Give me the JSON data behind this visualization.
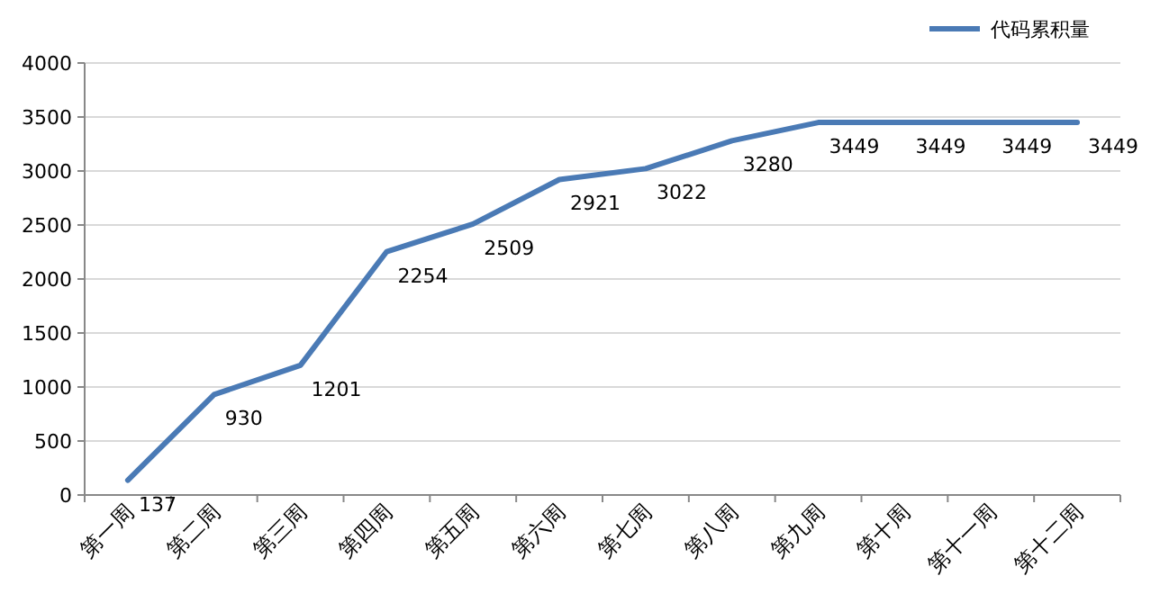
{
  "chart_data": {
    "type": "line",
    "categories": [
      "第一周",
      "第二周",
      "第三周",
      "第四周",
      "第五周",
      "第六周",
      "第七周",
      "第八周",
      "第九周",
      "第十周",
      "第十一周",
      "第十二周"
    ],
    "series": [
      {
        "name": "代码累积量",
        "color": "#4a7ab5",
        "values": [
          137,
          930,
          1201,
          2254,
          2509,
          2921,
          3022,
          3280,
          3449,
          3449,
          3449,
          3449
        ]
      }
    ],
    "ylim": [
      0,
      4000
    ],
    "yticks": [
      0,
      500,
      1000,
      1500,
      2000,
      2500,
      3000,
      3500,
      4000
    ],
    "grid": "y",
    "legend": "top right",
    "data_labels": true,
    "marker": "none"
  }
}
